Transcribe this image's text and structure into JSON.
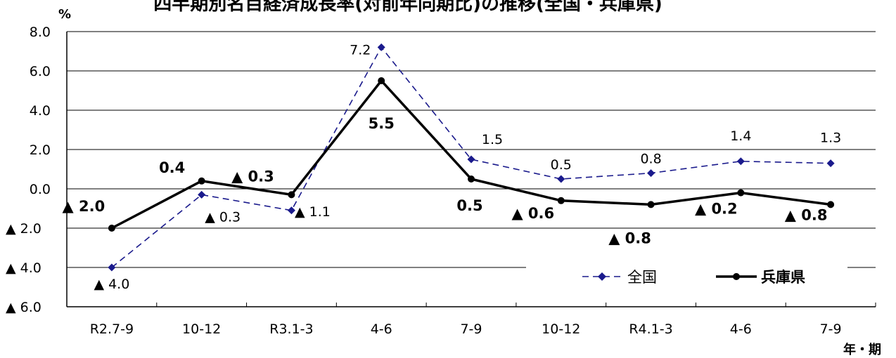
{
  "chart_data": {
    "type": "line",
    "title": "四半期別名目経済成長率(対前年同期比)の推移(全国・兵庫県)",
    "ylabel": "%",
    "xlabel": "年・期",
    "ylim": [
      -6.0,
      8.0
    ],
    "yticks": [
      8.0,
      6.0,
      4.0,
      2.0,
      0.0,
      -2.0,
      -4.0,
      -6.0
    ],
    "ytick_labels": [
      "8.0",
      "6.0",
      "4.0",
      "2.0",
      "0.0",
      "▲ 2.0",
      "▲ 4.0",
      "▲ 6.0"
    ],
    "categories": [
      "R2.7-9",
      "10-12",
      "R3.1-3",
      "4-6",
      "7-9",
      "10-12",
      "R4.1-3",
      "4-6",
      "7-9"
    ],
    "grid": true,
    "legend_position": "bottom-right",
    "series": [
      {
        "name": "全国",
        "style": "dashed-diamond",
        "color": "#1a1a8c",
        "values": [
          -4.0,
          -0.3,
          -1.1,
          7.2,
          1.5,
          0.5,
          0.8,
          1.4,
          1.3
        ],
        "labels": [
          "▲ 4.0",
          "▲ 0.3",
          "▲ 1.1",
          "7.2",
          "1.5",
          "0.5",
          "0.8",
          "1.4",
          "1.3"
        ]
      },
      {
        "name": "兵庫県",
        "style": "solid-circle",
        "color": "#000000",
        "values": [
          -2.0,
          0.4,
          -0.3,
          5.5,
          0.5,
          -0.6,
          -0.8,
          -0.2,
          -0.8
        ],
        "labels": [
          "▲ 2.0",
          "0.4",
          "▲ 0.3",
          "5.5",
          "0.5",
          "▲ 0.6",
          "▲ 0.8",
          "▲ 0.2",
          "▲ 0.8"
        ]
      }
    ]
  }
}
